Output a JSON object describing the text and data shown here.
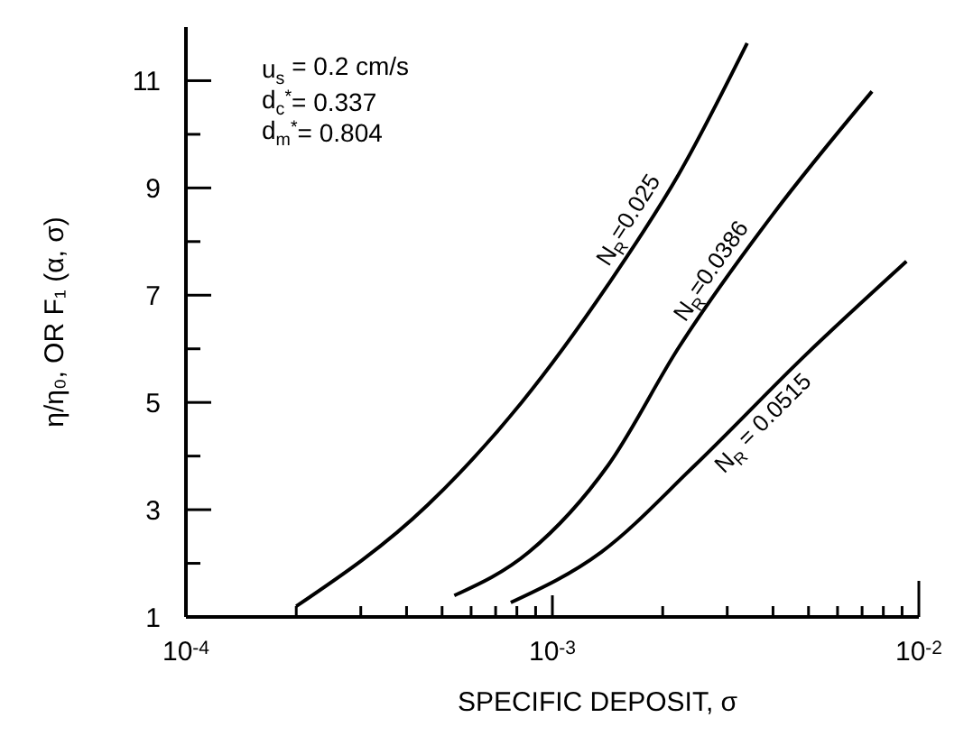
{
  "chart_data": {
    "type": "line",
    "xlabel": "SPECIFIC DEPOSIT, σ",
    "ylabel": "η/η₀, OR F₁ (α, σ)",
    "log": "x",
    "xlim": [
      0.0001,
      0.01
    ],
    "ylim": [
      1,
      12
    ],
    "xticks": [
      {
        "value": 0.0001,
        "label": "10$^{-4}$"
      },
      {
        "value": 0.0002,
        "label": null
      },
      {
        "value": 0.0003,
        "label": null
      },
      {
        "value": 0.0004,
        "label": null
      },
      {
        "value": 0.0005,
        "label": null
      },
      {
        "value": 0.0006,
        "label": null
      },
      {
        "value": 0.0007,
        "label": null
      },
      {
        "value": 0.0008,
        "label": null
      },
      {
        "value": 0.0009,
        "label": null
      },
      {
        "value": 0.001,
        "label": "10$^{-3}$"
      },
      {
        "value": 0.002,
        "label": null
      },
      {
        "value": 0.003,
        "label": null
      },
      {
        "value": 0.004,
        "label": null
      },
      {
        "value": 0.005,
        "label": null
      },
      {
        "value": 0.006,
        "label": null
      },
      {
        "value": 0.007,
        "label": null
      },
      {
        "value": 0.008,
        "label": null
      },
      {
        "value": 0.009,
        "label": null
      },
      {
        "value": 0.01,
        "label": "10$^{-2}$"
      }
    ],
    "yticks": [
      1,
      {
        "value": 2,
        "label": null
      },
      3,
      {
        "value": 4,
        "label": null
      },
      5,
      {
        "value": 6,
        "label": null
      },
      7,
      {
        "value": 8,
        "label": null
      },
      9,
      {
        "value": 10,
        "label": null
      },
      11
    ],
    "grid": false,
    "legend": false,
    "marker": "none",
    "line_style": "solid",
    "series": [
      {
        "name": "N$_{R}$=0.025",
        "color": "#000000",
        "x": [
          0.0002,
          0.000457,
          0.000824,
          0.00142,
          0.00221,
          0.0034
        ],
        "values": [
          1.2,
          3.09,
          5.0,
          7.2,
          9.25,
          11.7
        ]
      },
      {
        "name": "N$_{R}$=0.0386",
        "color": "#000000",
        "x": [
          0.00054,
          0.000863,
          0.00142,
          0.00221,
          0.00399,
          0.00745
        ],
        "values": [
          1.4,
          2.21,
          3.83,
          6.02,
          8.5,
          10.8
        ]
      },
      {
        "name": "N$_{R}$ = 0.0515",
        "color": "#000000",
        "x": [
          0.00077,
          0.00136,
          0.00245,
          0.0049,
          0.00925
        ],
        "values": [
          1.27,
          2.21,
          3.83,
          5.88,
          7.63
        ]
      }
    ],
    "annotations": [
      "u$_{s}$ = 0.2 cm/s",
      "d$_{c}$$^{*}$= 0.337",
      "d$_{m}$$^{*}$= 0.804"
    ]
  }
}
